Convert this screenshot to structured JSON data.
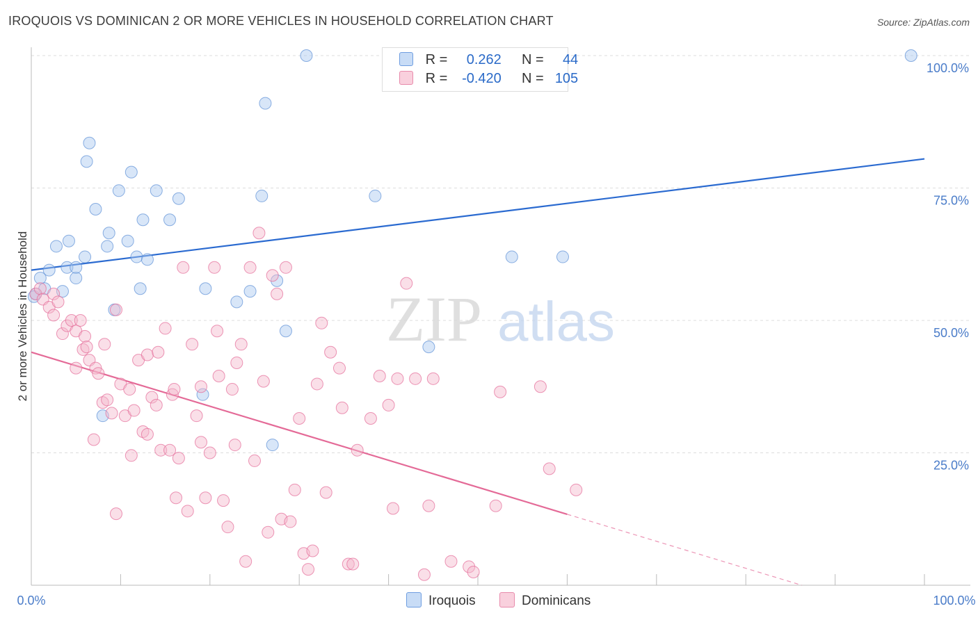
{
  "title": "IROQUOIS VS DOMINICAN 2 OR MORE VEHICLES IN HOUSEHOLD CORRELATION CHART",
  "source": "Source: ZipAtlas.com",
  "watermark": {
    "zip": "ZIP",
    "atlas": "atlas"
  },
  "legend": {
    "rows": [
      {
        "r_label": "R =",
        "r_value": "0.262",
        "n_label": "N =",
        "n_value": "44",
        "color": "#a8c8f0"
      },
      {
        "r_label": "R =",
        "r_value": "-0.420",
        "n_label": "N =",
        "n_value": "105",
        "color": "#f5b8cc"
      }
    ]
  },
  "bottom_legend": {
    "iroquois": "Iroquois",
    "dominicans": "Dominicans"
  },
  "chart_data": {
    "type": "scatter",
    "title": "IROQUOIS VS DOMINICAN 2 OR MORE VEHICLES IN HOUSEHOLD CORRELATION CHART",
    "xlabel": "",
    "ylabel": "2 or more Vehicles in Household",
    "xlim": [
      0,
      100
    ],
    "ylim": [
      0,
      100
    ],
    "x_tick_labels": [
      "0.0%",
      "100.0%"
    ],
    "y_tick_labels": [
      "25.0%",
      "50.0%",
      "75.0%",
      "100.0%"
    ],
    "y_tick_values": [
      25,
      50,
      75,
      100
    ],
    "series": [
      {
        "name": "Iroquois",
        "color": "#5b8fd6",
        "fill": "#a8c8f0",
        "trend": {
          "x1": 0,
          "y1": 59.5,
          "x2": 100,
          "y2": 80.5,
          "dashed_from": null
        },
        "points": [
          [
            0.5,
            55
          ],
          [
            1,
            58
          ],
          [
            1.5,
            56
          ],
          [
            2,
            59.5
          ],
          [
            2.8,
            64
          ],
          [
            3.5,
            55.5
          ],
          [
            4,
            60
          ],
          [
            4.2,
            65
          ],
          [
            5,
            58
          ],
          [
            5,
            60
          ],
          [
            6,
            62
          ],
          [
            6.2,
            80
          ],
          [
            6.5,
            83.5
          ],
          [
            7.2,
            71
          ],
          [
            8,
            32
          ],
          [
            8.5,
            64
          ],
          [
            8.7,
            66.5
          ],
          [
            9.3,
            52
          ],
          [
            9.8,
            74.5
          ],
          [
            10.8,
            65
          ],
          [
            11.2,
            78
          ],
          [
            11.8,
            62
          ],
          [
            12.2,
            56
          ],
          [
            12.5,
            69
          ],
          [
            13,
            61.5
          ],
          [
            14,
            74.5
          ],
          [
            15.5,
            69
          ],
          [
            16.5,
            73
          ],
          [
            19.2,
            36
          ],
          [
            19.5,
            56
          ],
          [
            23,
            53.5
          ],
          [
            24.5,
            55.5
          ],
          [
            25.8,
            73.5
          ],
          [
            26.2,
            91
          ],
          [
            27,
            26.5
          ],
          [
            27.5,
            57.5
          ],
          [
            28.5,
            48
          ],
          [
            30.8,
            100
          ],
          [
            38.5,
            73.5
          ],
          [
            44.5,
            45
          ],
          [
            53.8,
            62
          ],
          [
            59.5,
            62
          ],
          [
            98.5,
            100
          ],
          [
            0.3,
            54.5
          ]
        ]
      },
      {
        "name": "Dominicans",
        "color": "#e46a97",
        "fill": "#f5b8cc",
        "trend": {
          "x1": 0,
          "y1": 44,
          "x2": 100,
          "y2": -7,
          "dashed_from": 60
        },
        "points": [
          [
            0.5,
            55
          ],
          [
            1,
            56
          ],
          [
            1.3,
            54
          ],
          [
            2,
            52.5
          ],
          [
            2.5,
            55
          ],
          [
            2.5,
            51
          ],
          [
            3,
            53.5
          ],
          [
            3.5,
            47.5
          ],
          [
            4,
            49
          ],
          [
            4.5,
            50
          ],
          [
            5,
            48
          ],
          [
            5,
            41
          ],
          [
            5.5,
            50
          ],
          [
            5.8,
            44.5
          ],
          [
            6,
            47
          ],
          [
            6.2,
            45
          ],
          [
            6.5,
            42.5
          ],
          [
            7,
            27.5
          ],
          [
            7.2,
            41
          ],
          [
            7.5,
            40
          ],
          [
            8,
            34.5
          ],
          [
            8.2,
            45.5
          ],
          [
            8.5,
            35
          ],
          [
            9,
            32.5
          ],
          [
            9.5,
            52
          ],
          [
            9.5,
            13.5
          ],
          [
            10,
            38
          ],
          [
            10.5,
            32
          ],
          [
            11,
            37
          ],
          [
            11.2,
            24.5
          ],
          [
            11.5,
            33
          ],
          [
            12,
            42.5
          ],
          [
            12.5,
            29
          ],
          [
            13,
            28.5
          ],
          [
            13,
            43.5
          ],
          [
            13.5,
            35.5
          ],
          [
            14,
            34
          ],
          [
            14.2,
            44
          ],
          [
            14.5,
            25.5
          ],
          [
            15,
            48.5
          ],
          [
            15.5,
            25.5
          ],
          [
            15.8,
            36
          ],
          [
            16,
            37
          ],
          [
            16.2,
            16.5
          ],
          [
            16.5,
            24
          ],
          [
            17,
            60
          ],
          [
            17.5,
            14
          ],
          [
            18,
            45.5
          ],
          [
            18.5,
            32
          ],
          [
            19,
            27
          ],
          [
            19,
            37.5
          ],
          [
            19.5,
            16.5
          ],
          [
            20,
            25
          ],
          [
            20.5,
            60
          ],
          [
            20.8,
            48
          ],
          [
            21,
            39.5
          ],
          [
            21.5,
            16
          ],
          [
            22,
            11
          ],
          [
            22.5,
            37
          ],
          [
            22.8,
            26.5
          ],
          [
            23,
            42
          ],
          [
            23.5,
            45.5
          ],
          [
            24,
            4.5
          ],
          [
            24.5,
            60
          ],
          [
            25,
            23.5
          ],
          [
            25.5,
            66.5
          ],
          [
            26,
            38.5
          ],
          [
            26.5,
            10
          ],
          [
            27,
            58.5
          ],
          [
            27.5,
            55
          ],
          [
            28,
            12.5
          ],
          [
            28.5,
            60
          ],
          [
            29,
            12
          ],
          [
            29.5,
            18
          ],
          [
            30,
            31.5
          ],
          [
            30.5,
            6
          ],
          [
            31,
            3
          ],
          [
            31.5,
            6.5
          ],
          [
            32,
            38
          ],
          [
            32.5,
            49.5
          ],
          [
            33,
            17.5
          ],
          [
            33.5,
            44
          ],
          [
            34.5,
            41
          ],
          [
            34.8,
            33.5
          ],
          [
            35.5,
            4
          ],
          [
            36,
            4
          ],
          [
            36.5,
            25.5
          ],
          [
            38,
            31.5
          ],
          [
            39,
            39.5
          ],
          [
            40,
            34
          ],
          [
            40.5,
            14.5
          ],
          [
            41,
            39
          ],
          [
            42,
            57
          ],
          [
            43,
            39
          ],
          [
            44,
            2
          ],
          [
            44.5,
            15
          ],
          [
            45,
            39
          ],
          [
            47,
            4.5
          ],
          [
            49,
            3.5
          ],
          [
            49.5,
            2.5
          ],
          [
            52,
            15
          ],
          [
            52.5,
            36.5
          ],
          [
            57,
            37.5
          ],
          [
            58,
            22
          ],
          [
            61,
            18
          ]
        ]
      }
    ]
  }
}
